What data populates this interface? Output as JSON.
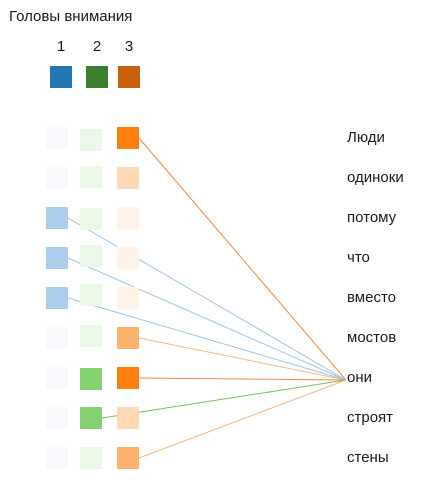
{
  "title": "Головы внимания",
  "heads": [
    {
      "label": "1",
      "color": "#2477b5"
    },
    {
      "label": "2",
      "color": "#3c7f2c"
    },
    {
      "label": "3",
      "color": "#c9610f"
    }
  ],
  "tokens": [
    "Люди",
    "одиноки",
    "потому",
    "что",
    "вместо",
    "мостов",
    "они",
    "строят",
    "стены"
  ],
  "query_index": 6,
  "head_base_colors": [
    "#8ebde6",
    "#79cc61",
    "#ff7f0e"
  ],
  "attention": [
    [
      0.08,
      0.15,
      1.0
    ],
    [
      0.08,
      0.15,
      0.3
    ],
    [
      0.75,
      0.15,
      0.1
    ],
    [
      0.75,
      0.15,
      0.1
    ],
    [
      0.75,
      0.15,
      0.1
    ],
    [
      0.08,
      0.15,
      0.6
    ],
    [
      0.08,
      0.9,
      1.0
    ],
    [
      0.08,
      0.9,
      0.3
    ],
    [
      0.08,
      0.15,
      0.6
    ]
  ],
  "links": [
    {
      "token": 0,
      "head": 2,
      "color": "#f08a4b"
    },
    {
      "token": 2,
      "head": 0,
      "color": "#9ec5e8"
    },
    {
      "token": 3,
      "head": 0,
      "color": "#9ec5e8"
    },
    {
      "token": 4,
      "head": 0,
      "color": "#9ec5e8"
    },
    {
      "token": 5,
      "head": 2,
      "color": "#f6b883"
    },
    {
      "token": 6,
      "head": 2,
      "color": "#f08a4b"
    },
    {
      "token": 7,
      "head": 1,
      "color": "#78c05a"
    },
    {
      "token": 8,
      "head": 2,
      "color": "#f6b883"
    }
  ]
}
